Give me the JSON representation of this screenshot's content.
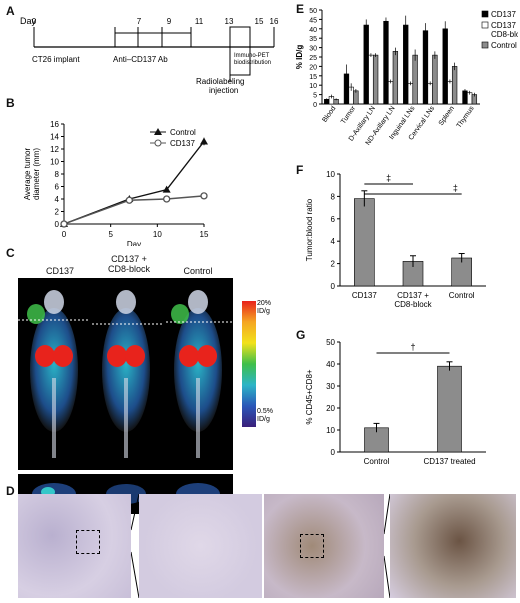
{
  "panels": {
    "A": "A",
    "B": "B",
    "C": "C",
    "D": "D",
    "E": "E",
    "F": "F",
    "G": "G"
  },
  "timeline": {
    "day_prefix": "Day",
    "ticks": [
      {
        "day": 0,
        "label": "0"
      },
      {
        "day": 7,
        "label": "7"
      },
      {
        "day": 9,
        "label": "9"
      },
      {
        "day": 11,
        "label": "11"
      },
      {
        "day": 13,
        "label": "13"
      },
      {
        "day": 15,
        "label": "15"
      },
      {
        "day": 16,
        "label": "16"
      }
    ],
    "implant": "CT26 implant",
    "antibody": "Anti–CD137 Ab",
    "radiolabel": [
      "Radiolabeling",
      "injection"
    ],
    "immunopet": [
      "Immuno-PET",
      "biodistribution"
    ]
  },
  "pet": {
    "labels": [
      "CD137",
      "CD137 +\nCD8-block",
      "Control"
    ],
    "scale_top": [
      "20%",
      "ID/g"
    ],
    "scale_bottom": [
      "0.5%",
      "ID/g"
    ]
  },
  "chart_data": [
    {
      "id": "B",
      "type": "line",
      "ylabel": "Average tumor diameter (mm)",
      "xlabel": "Day",
      "xlim": [
        0,
        15
      ],
      "ylim": [
        0,
        16
      ],
      "xticks": [
        0,
        5,
        10,
        15
      ],
      "yticks": [
        0,
        2,
        4,
        6,
        8,
        10,
        12,
        14,
        16
      ],
      "legend": "top-right",
      "series": [
        {
          "name": "Control",
          "x": [
            0,
            7,
            11,
            15
          ],
          "y": [
            0,
            4.0,
            5.5,
            13.2
          ],
          "err": [
            0,
            0.2,
            0.3,
            0.6
          ],
          "marker": "triangle",
          "color": "#111111"
        },
        {
          "name": "CD137",
          "x": [
            0,
            7,
            11,
            15
          ],
          "y": [
            0,
            3.8,
            4.0,
            4.5
          ],
          "err": [
            0,
            0.2,
            0.2,
            0.4
          ],
          "marker": "circle",
          "color": "#555555"
        }
      ]
    },
    {
      "id": "E",
      "type": "bar",
      "ylabel": "% ID/g",
      "ylim": [
        0,
        50
      ],
      "yticks": [
        0,
        5,
        10,
        15,
        20,
        25,
        30,
        35,
        40,
        45,
        50
      ],
      "categories": [
        "Blood",
        "Tumor",
        "D-Axillary LN",
        "ND-Axillary LN",
        "Inguinal LNs",
        "Cervical LNs",
        "Spleen",
        "Thymus"
      ],
      "series": [
        {
          "name": "CD137",
          "values": [
            2.5,
            16,
            42,
            44,
            42,
            39,
            40,
            7
          ],
          "err": [
            0.5,
            5,
            3,
            2,
            5,
            4,
            4,
            1
          ],
          "color": "#000000"
        },
        {
          "name": "CD137 + CD8-block",
          "values": [
            4,
            9,
            26,
            12,
            11,
            11,
            12,
            6
          ],
          "err": [
            1,
            2,
            1,
            1,
            1,
            1,
            1,
            1
          ],
          "color": "#ffffff"
        },
        {
          "name": "Control",
          "values": [
            2.5,
            7,
            26,
            28,
            26,
            26,
            20,
            5
          ],
          "err": [
            0.5,
            1,
            1,
            2,
            3,
            2,
            2,
            1
          ],
          "color": "#8c8c8c"
        }
      ],
      "legend": "top-right"
    },
    {
      "id": "F",
      "type": "bar",
      "ylabel": "Tumor:blood ratio",
      "ylim": [
        0,
        10
      ],
      "yticks": [
        0,
        2,
        4,
        6,
        8,
        10
      ],
      "categories": [
        "CD137",
        "CD137 +\nCD8-block",
        "Control"
      ],
      "values": [
        7.8,
        2.2,
        2.5
      ],
      "err": [
        0.7,
        0.5,
        0.4
      ],
      "annotations": [
        "‡",
        "‡"
      ]
    },
    {
      "id": "G",
      "type": "bar",
      "ylabel": "% CD45+CD8+",
      "ylim": [
        0,
        50
      ],
      "yticks": [
        0,
        10,
        20,
        30,
        40,
        50
      ],
      "categories": [
        "Control",
        "CD137 treated"
      ],
      "values": [
        11,
        39
      ],
      "err": [
        2,
        2
      ],
      "annotations": [
        "†"
      ]
    }
  ]
}
